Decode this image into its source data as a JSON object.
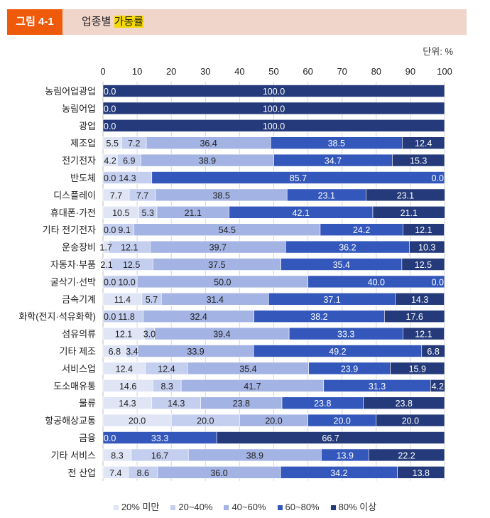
{
  "header": {
    "figure_label": "그림 4-1",
    "title_prefix": "업종별",
    "title_highlight": "가동률"
  },
  "unit": "단위: %",
  "chart_data": {
    "type": "bar",
    "orientation": "horizontal",
    "stacked": true,
    "xlim": [
      0,
      100
    ],
    "xticks": [
      "0",
      "10",
      "20",
      "30",
      "40",
      "50",
      "60",
      "70",
      "80",
      "90",
      "100"
    ],
    "legend_position": "bottom",
    "series": [
      {
        "name": "20% 미만",
        "color": "#dfe5f5"
      },
      {
        "name": "20~40%",
        "color": "#c4ceee"
      },
      {
        "name": "40~60%",
        "color": "#a3b3e3"
      },
      {
        "name": "60~80%",
        "color": "#3357bb"
      },
      {
        "name": "80% 이상",
        "color": "#243a7a"
      }
    ],
    "rows": [
      {
        "category": "농림어업광업",
        "values": [
          0,
          0,
          0,
          0,
          100
        ],
        "labels": [
          "0.0",
          "",
          "",
          "",
          "100.0"
        ]
      },
      {
        "category": "농림어업",
        "values": [
          0,
          0,
          0,
          0,
          100
        ],
        "labels": [
          "0.0",
          "",
          "",
          "",
          "100.0"
        ]
      },
      {
        "category": "광업",
        "values": [
          0,
          0,
          0,
          0,
          100
        ],
        "labels": [
          "0.0",
          "",
          "",
          "",
          "100.0"
        ]
      },
      {
        "category": "제조업",
        "values": [
          5.5,
          7.2,
          36.4,
          38.5,
          12.4
        ],
        "labels": [
          "5.5",
          "7.2",
          "36.4",
          "38.5",
          "12.4"
        ]
      },
      {
        "category": "전기전자",
        "values": [
          4.2,
          6.9,
          38.9,
          34.7,
          15.3
        ],
        "labels": [
          "4.2",
          "6.9",
          "38.9",
          "34.7",
          "15.3"
        ]
      },
      {
        "category": "반도체",
        "values": [
          0,
          14.3,
          0,
          85.7,
          0
        ],
        "labels": [
          "0.0",
          "14.3",
          "",
          "85.7",
          "0.0"
        ]
      },
      {
        "category": "디스플레이",
        "values": [
          7.7,
          7.7,
          38.5,
          23.1,
          23.1
        ],
        "labels": [
          "7.7",
          "7.7",
          "38.5",
          "23.1",
          "23.1"
        ]
      },
      {
        "category": "휴대폰·가전",
        "values": [
          10.5,
          5.3,
          21.1,
          42.1,
          21.1
        ],
        "labels": [
          "10.5",
          "5.3",
          "21.1",
          "42.1",
          "21.1"
        ]
      },
      {
        "category": "기타 전기전자",
        "values": [
          0,
          9.1,
          54.5,
          24.2,
          12.1
        ],
        "labels": [
          "0.0",
          "9.1",
          "54.5",
          "24.2",
          "12.1"
        ]
      },
      {
        "category": "운송장비",
        "values": [
          1.7,
          12.1,
          39.7,
          36.2,
          10.3
        ],
        "labels": [
          "1.7",
          "12.1",
          "39.7",
          "36.2",
          "10.3"
        ]
      },
      {
        "category": "자동차·부품",
        "values": [
          2.1,
          12.5,
          37.5,
          35.4,
          12.5
        ],
        "labels": [
          "2.1",
          "12.5",
          "37.5",
          "35.4",
          "12.5"
        ]
      },
      {
        "category": "굴삭기·선박",
        "values": [
          0,
          10,
          50,
          40,
          0
        ],
        "labels": [
          "0.0",
          "10.0",
          "50.0",
          "40.0",
          "0.0"
        ]
      },
      {
        "category": "금속기계",
        "values": [
          11.4,
          5.7,
          31.4,
          37.1,
          14.3
        ],
        "labels": [
          "11.4",
          "5.7",
          "31.4",
          "37.1",
          "14.3"
        ]
      },
      {
        "category": "화학(전지·석유화학)",
        "values": [
          0,
          11.8,
          32.4,
          38.2,
          17.6
        ],
        "labels": [
          "0.0",
          "11.8",
          "32.4",
          "38.2",
          "17.6"
        ]
      },
      {
        "category": "섬유의류",
        "values": [
          12.1,
          3.0,
          39.4,
          33.3,
          12.1
        ],
        "labels": [
          "12.1",
          "3.0",
          "39.4",
          "33.3",
          "12.1"
        ]
      },
      {
        "category": "기타 제조",
        "values": [
          6.8,
          3.4,
          33.9,
          49.2,
          6.8
        ],
        "labels": [
          "6.8",
          "3.4",
          "33.9",
          "49.2",
          "6.8"
        ]
      },
      {
        "category": "서비스업",
        "values": [
          12.4,
          12.4,
          35.4,
          23.9,
          15.9
        ],
        "labels": [
          "12.4",
          "12.4",
          "35.4",
          "23.9",
          "15.9"
        ]
      },
      {
        "category": "도소매유통",
        "values": [
          14.6,
          8.3,
          41.7,
          31.3,
          4.2
        ],
        "labels": [
          "14.6",
          "8.3",
          "41.7",
          "31.3",
          "4.2"
        ]
      },
      {
        "category": "물류",
        "values": [
          14.3,
          14.3,
          23.8,
          23.8,
          23.8
        ],
        "labels": [
          "14.3",
          "14.3",
          "23.8",
          "23.8",
          "23.8"
        ]
      },
      {
        "category": "항공해상교통",
        "values": [
          20,
          20,
          20,
          20,
          20
        ],
        "labels": [
          "20.0",
          "20.0",
          "20.0",
          "20.0",
          "20.0"
        ]
      },
      {
        "category": "금융",
        "values": [
          0,
          0,
          0,
          33.3,
          66.7
        ],
        "labels": [
          "0.0",
          "",
          "",
          "33.3",
          "66.7"
        ]
      },
      {
        "category": "기타 서비스",
        "values": [
          8.3,
          16.7,
          38.9,
          13.9,
          22.2
        ],
        "labels": [
          "8.3",
          "16.7",
          "38.9",
          "13.9",
          "22.2"
        ]
      },
      {
        "category": "전 산업",
        "values": [
          7.4,
          8.6,
          36.0,
          34.2,
          13.8
        ],
        "labels": [
          "7.4",
          "8.6",
          "36.0",
          "34.2",
          "13.8"
        ]
      }
    ]
  }
}
